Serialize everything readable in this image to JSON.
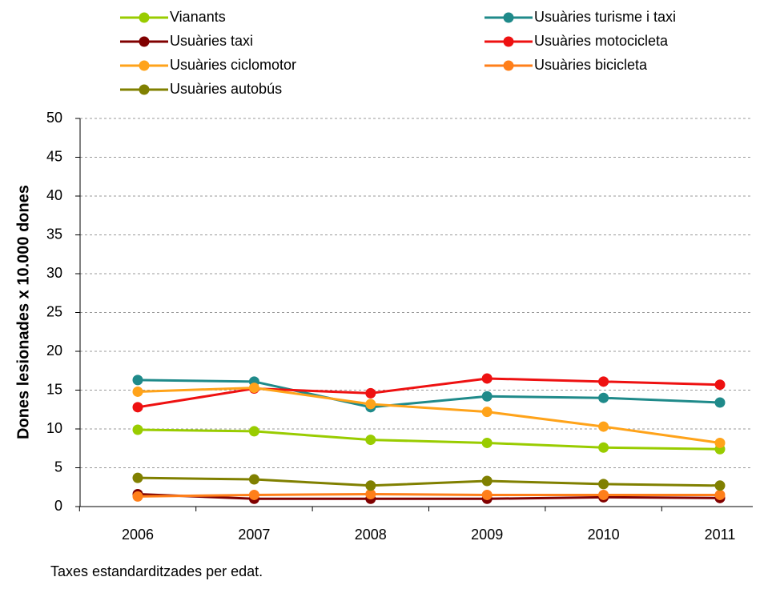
{
  "chart_data": {
    "type": "line",
    "y_label": "Dones lesionades x 10.000 dones",
    "note": "Taxes estandarditzades per edat.",
    "categories": [
      "2006",
      "2007",
      "2008",
      "2009",
      "2010",
      "2011"
    ],
    "series": [
      {
        "name": "Vianants",
        "color": "#99cc00",
        "values": [
          9.9,
          9.7,
          8.6,
          8.2,
          7.6,
          7.4
        ]
      },
      {
        "name": "Usuàries turisme i taxi",
        "color": "#1f8a8a",
        "values": [
          16.3,
          16.1,
          12.8,
          14.2,
          14.0,
          13.4
        ]
      },
      {
        "name": "Usuàries taxi",
        "color": "#800000",
        "values": [
          1.6,
          1.0,
          1.0,
          1.0,
          1.2,
          1.1
        ]
      },
      {
        "name": "Usuàries motocicleta",
        "color": "#ee1111",
        "values": [
          12.8,
          15.2,
          14.6,
          16.5,
          16.1,
          15.7
        ]
      },
      {
        "name": "Usuàries ciclomotor",
        "color": "#ffa31a",
        "values": [
          14.8,
          15.3,
          13.2,
          12.2,
          10.3,
          8.2
        ]
      },
      {
        "name": "Usuàries bicicleta",
        "color": "#ff7f1a",
        "values": [
          1.3,
          1.5,
          1.6,
          1.5,
          1.5,
          1.5
        ]
      },
      {
        "name": "Usuàries autobús",
        "color": "#808000",
        "values": [
          3.7,
          3.5,
          2.7,
          3.3,
          2.9,
          2.7
        ]
      }
    ],
    "ylim": [
      0,
      50
    ],
    "yticks": [
      0,
      5,
      10,
      15,
      20,
      25,
      30,
      35,
      40,
      45,
      50
    ],
    "grid": true
  }
}
